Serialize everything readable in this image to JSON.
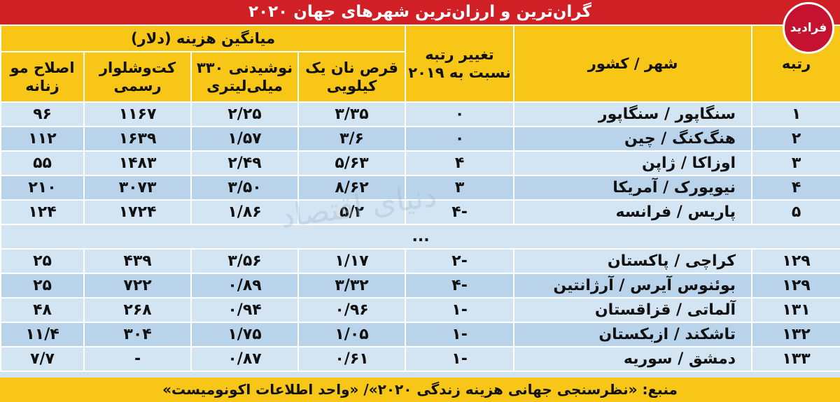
{
  "chart_data": {
    "type": "table",
    "title": "گران‌ترین و ارزان‌ترین شهرهای جهان ۲۰۲۰",
    "headers": {
      "rank": "رتبه",
      "city": "شهر / کشور",
      "change": "تغییر رتبه نسبت به ۲۰۱۹",
      "avg_cost": "میانگین هزینه (دلار)",
      "bread": "قرص نان یک کیلویی",
      "drink": "نوشیدنی ۳۳۰ میلی‌لیتری",
      "suit": "کت‌وشلوار رسمی",
      "haircut": "اصلاح مو زنانه"
    },
    "rows": [
      {
        "rank": "۱",
        "city": "سنگاپور / سنگاپور",
        "change": "۰",
        "bread": "۳/۳۵",
        "drink": "۲/۲۵",
        "suit": "۱۱۶۷",
        "haircut": "۹۶"
      },
      {
        "rank": "۲",
        "city": "هنگ‌کنگ / چین",
        "change": "۰",
        "bread": "۳/۶",
        "drink": "۱/۵۷",
        "suit": "۱۶۳۹",
        "haircut": "۱۱۲"
      },
      {
        "rank": "۳",
        "city": "اوزاکا / ژاپن",
        "change": "۴",
        "bread": "۵/۶۳",
        "drink": "۲/۴۹",
        "suit": "۱۴۸۳",
        "haircut": "۵۵"
      },
      {
        "rank": "۴",
        "city": "نیویورک / آمریکا",
        "change": "۳",
        "bread": "۸/۶۲",
        "drink": "۳/۵۰",
        "suit": "۳۰۷۳",
        "haircut": "۲۱۰"
      },
      {
        "rank": "۵",
        "city": "پاریس / فرانسه",
        "change": "-۴",
        "bread": "۵/۲",
        "drink": "۱/۸۶",
        "suit": "۱۷۲۴",
        "haircut": "۱۲۴"
      }
    ],
    "ellipsis": "...",
    "rows_bottom": [
      {
        "rank": "۱۲۹",
        "city": "کراچی / پاکستان",
        "change": "-۲",
        "bread": "۱/۱۷",
        "drink": "۳/۵۶",
        "suit": "۴۳۹",
        "haircut": "۲۵"
      },
      {
        "rank": "۱۲۹",
        "city": "بوئنوس آیرس / آرژانتین",
        "change": "-۴",
        "bread": "۳/۳۲",
        "drink": "۰/۸۹",
        "suit": "۷۲۲",
        "haircut": "۲۵"
      },
      {
        "rank": "۱۳۱",
        "city": "آلماتی / قزاقستان",
        "change": "-۱",
        "bread": "۰/۹۶",
        "drink": "۰/۹۴",
        "suit": "۲۶۸",
        "haircut": "۴۸"
      },
      {
        "rank": "۱۳۲",
        "city": "تاشکند / ازبکستان",
        "change": "-۱",
        "bread": "۱/۰۵",
        "drink": "۱/۷۵",
        "suit": "۳۰۴",
        "haircut": "۱۱/۴"
      },
      {
        "rank": "۱۳۳",
        "city": "دمشق / سوریه",
        "change": "-۱",
        "bread": "۰/۶۱",
        "drink": "۰/۸۷",
        "suit": "-",
        "haircut": "۷/۷"
      }
    ],
    "source": "منبع: «نظرسنجی جهانی هزینه زندگی ۲۰۲۰»/ «واحد اطلاعات اکونومیست»"
  },
  "logo": {
    "text": "فرادید",
    "color": "#c41230"
  },
  "watermark": "دنیای اقتصاد",
  "colors": {
    "title_bg": "#d11f26",
    "header_bg": "#f7c617",
    "row_light": "#d3e5f3",
    "row_dark": "#b9d3ea"
  }
}
